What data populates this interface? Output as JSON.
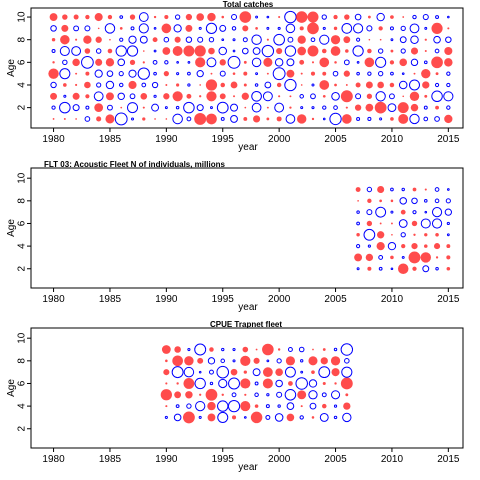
{
  "chart_data": [
    {
      "type": "scatter",
      "title": "Total catches",
      "xlabel": "year",
      "ylabel": "Age",
      "xlim": [
        1978,
        2016.3
      ],
      "ylim": [
        0.2,
        10.8
      ],
      "xticks": [
        1980,
        1985,
        1990,
        1995,
        2000,
        2005,
        2010,
        2015
      ],
      "yticks": [
        2,
        4,
        6,
        8,
        10
      ],
      "colors": {
        "positive": "#ff0000",
        "negative": "#0000ff"
      },
      "x": [
        1980,
        2015
      ],
      "ages": [
        1,
        10
      ]
    },
    {
      "type": "scatter",
      "title": "FLT 03: Acoustic Fleet   N of individuals, millions",
      "xlabel": "year",
      "ylabel": "Age",
      "xlim": [
        1978,
        2016.3
      ],
      "ylim": [
        0.3,
        10.9
      ],
      "xticks": [
        1980,
        1985,
        1990,
        1995,
        2000,
        2005,
        2010,
        2015
      ],
      "yticks": [
        2,
        4,
        6,
        8,
        10
      ],
      "colors": {
        "positive": "#ff0000",
        "negative": "#0000ff"
      },
      "x": [
        2007,
        2015
      ],
      "ages": [
        2,
        9
      ]
    },
    {
      "type": "scatter",
      "title": "CPUE Trapnet fleet",
      "xlabel": "year",
      "ylabel": "Age",
      "xlim": [
        1978,
        2016.3
      ],
      "ylim": [
        0.3,
        10.9
      ],
      "xticks": [
        1980,
        1985,
        1990,
        1995,
        2000,
        2005,
        2010,
        2015
      ],
      "yticks": [
        2,
        4,
        6,
        8,
        10
      ],
      "colors": {
        "positive": "#ff0000",
        "negative": "#0000ff"
      },
      "x": [
        1990,
        2006
      ],
      "ages": [
        3,
        9
      ]
    }
  ]
}
